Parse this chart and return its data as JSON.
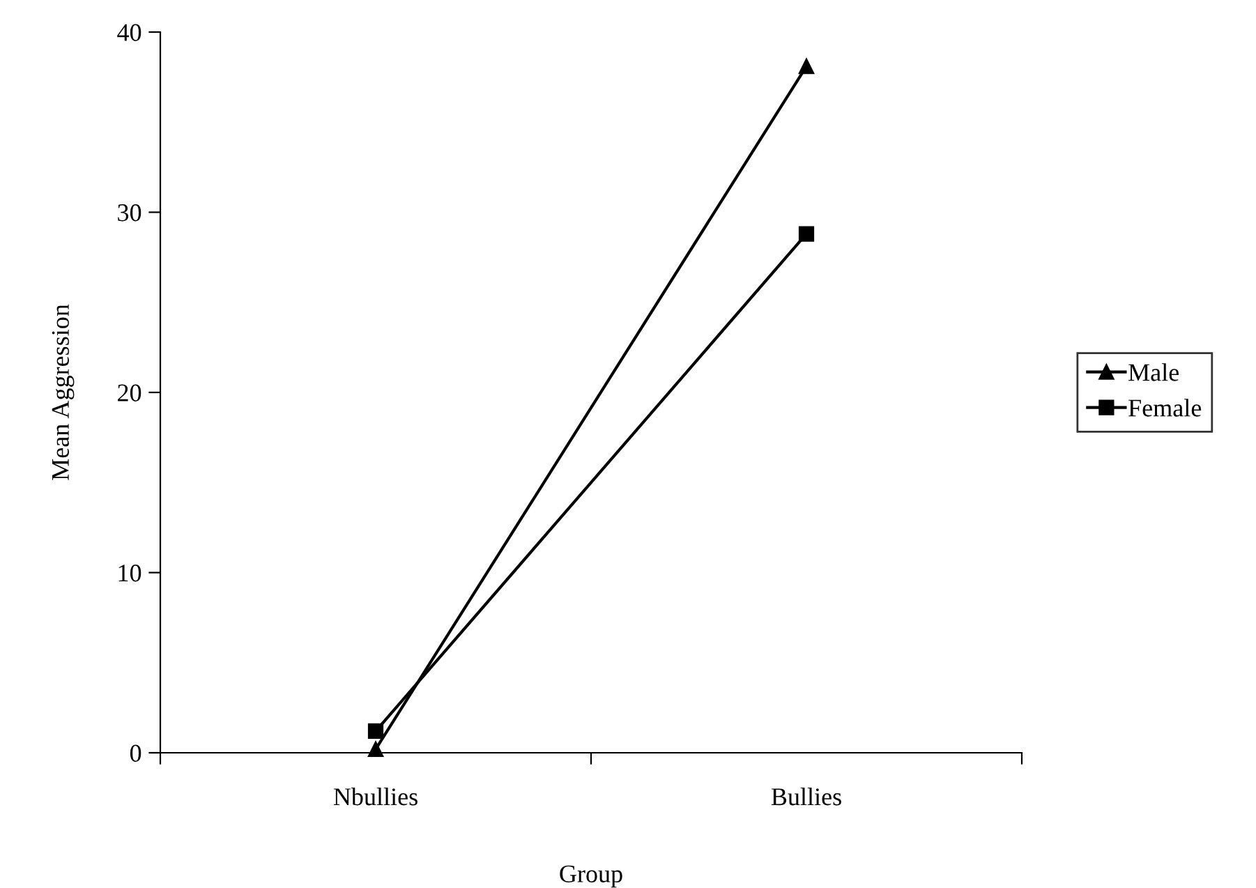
{
  "chart_data": {
    "type": "line",
    "xlabel": "Group",
    "ylabel": "Mean Aggression",
    "categories": [
      "Nbullies",
      "Bullies"
    ],
    "series": [
      {
        "name": "Male",
        "color": "#000000",
        "marker": "triangle",
        "values": [
          0.2,
          38.1
        ]
      },
      {
        "name": "Female",
        "color": "#000000",
        "marker": "square",
        "values": [
          1.2,
          28.8
        ]
      }
    ],
    "ylim": [
      0,
      40
    ],
    "yticks": [
      0,
      10,
      20,
      30,
      40
    ],
    "grid": false,
    "legend": "right",
    "line_style": "solid"
  }
}
